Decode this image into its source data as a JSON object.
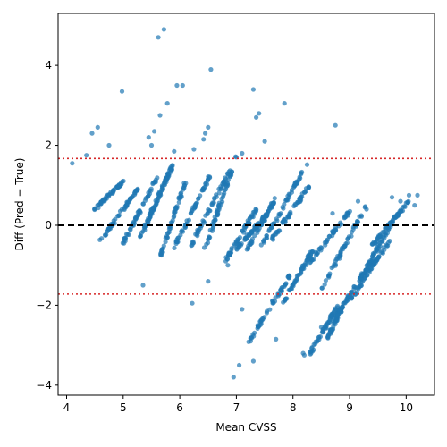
{
  "chart_data": {
    "type": "scatter",
    "title": "",
    "xlabel": "Mean CVSS",
    "ylabel": "Diff (Pred − True)",
    "xlim": [
      3.85,
      10.5
    ],
    "ylim": [
      -4.25,
      5.3
    ],
    "xticks": [
      4,
      5,
      6,
      7,
      8,
      9,
      10
    ],
    "yticks": [
      -4,
      -2,
      0,
      2,
      4
    ],
    "xtick_labels": [
      "4",
      "5",
      "6",
      "7",
      "8",
      "9",
      "10"
    ],
    "ytick_labels": [
      "−4",
      "−2",
      "0",
      "2",
      "4"
    ],
    "grid": false,
    "legend": "none",
    "point_color": "#1f77b4",
    "mean_diff": 0.0,
    "limits_of_agreement": [
      1.67,
      -1.72
    ],
    "mean_line_color": "#000000",
    "loa_line_color": "#d62728",
    "dense_segments": [
      {
        "x": [
          4.5,
          5.0
        ],
        "y": [
          0.4,
          1.1
        ]
      },
      {
        "x": [
          4.6,
          5.25
        ],
        "y": [
          -0.4,
          0.9
        ]
      },
      {
        "x": [
          5.0,
          5.6
        ],
        "y": [
          -0.45,
          1.2
        ]
      },
      {
        "x": [
          5.3,
          5.85
        ],
        "y": [
          -0.3,
          1.4
        ]
      },
      {
        "x": [
          5.4,
          5.9
        ],
        "y": [
          0.0,
          1.6
        ]
      },
      {
        "x": [
          5.65,
          6.1
        ],
        "y": [
          -0.8,
          1.1
        ]
      },
      {
        "x": [
          5.9,
          6.55
        ],
        "y": [
          -0.55,
          1.3
        ]
      },
      {
        "x": [
          6.2,
          6.9
        ],
        "y": [
          -0.5,
          1.4
        ]
      },
      {
        "x": [
          6.45,
          7.0
        ],
        "y": [
          -0.55,
          1.7
        ]
      },
      {
        "x": [
          6.8,
          7.35
        ],
        "y": [
          -0.9,
          0.4
        ]
      },
      {
        "x": [
          7.0,
          7.55
        ],
        "y": [
          -0.6,
          0.3
        ]
      },
      {
        "x": [
          7.2,
          7.7
        ],
        "y": [
          -0.6,
          0.7
        ]
      },
      {
        "x": [
          7.45,
          8.25
        ],
        "y": [
          -0.5,
          1.55
        ]
      },
      {
        "x": [
          7.6,
          8.3
        ],
        "y": [
          -0.4,
          1.0
        ]
      },
      {
        "x": [
          7.2,
          7.95
        ],
        "y": [
          -2.95,
          -1.25
        ]
      },
      {
        "x": [
          7.8,
          8.35
        ],
        "y": [
          -2.0,
          -0.6
        ]
      },
      {
        "x": [
          8.2,
          9.0
        ],
        "y": [
          -1.1,
          0.35
        ]
      },
      {
        "x": [
          8.5,
          9.3
        ],
        "y": [
          -1.6,
          0.5
        ]
      },
      {
        "x": [
          8.3,
          8.8
        ],
        "y": [
          -3.2,
          -2.0
        ]
      },
      {
        "x": [
          8.6,
          9.0
        ],
        "y": [
          -2.85,
          -1.7
        ]
      },
      {
        "x": [
          8.7,
          9.4
        ],
        "y": [
          -2.4,
          -0.9
        ]
      },
      {
        "x": [
          9.0,
          9.7
        ],
        "y": [
          -1.9,
          -0.4
        ]
      },
      {
        "x": [
          9.2,
          9.85
        ],
        "y": [
          -1.3,
          0.3
        ]
      },
      {
        "x": [
          9.4,
          10.05
        ],
        "y": [
          -0.5,
          0.6
        ]
      }
    ],
    "outliers": [
      {
        "x": 4.1,
        "y": 1.55
      },
      {
        "x": 4.35,
        "y": 1.75
      },
      {
        "x": 4.45,
        "y": 2.3
      },
      {
        "x": 4.55,
        "y": 2.45
      },
      {
        "x": 4.75,
        "y": 2.0
      },
      {
        "x": 4.98,
        "y": 3.35
      },
      {
        "x": 5.45,
        "y": 2.2
      },
      {
        "x": 5.5,
        "y": 2.0
      },
      {
        "x": 5.55,
        "y": 2.35
      },
      {
        "x": 5.62,
        "y": 4.7
      },
      {
        "x": 5.72,
        "y": 4.9
      },
      {
        "x": 5.65,
        "y": 2.75
      },
      {
        "x": 5.78,
        "y": 3.05
      },
      {
        "x": 5.9,
        "y": 1.85
      },
      {
        "x": 5.95,
        "y": 3.5
      },
      {
        "x": 6.05,
        "y": 3.5
      },
      {
        "x": 6.25,
        "y": 1.9
      },
      {
        "x": 6.42,
        "y": 2.15
      },
      {
        "x": 6.5,
        "y": 2.45
      },
      {
        "x": 6.55,
        "y": 3.9
      },
      {
        "x": 6.45,
        "y": 2.3
      },
      {
        "x": 7.1,
        "y": 1.8
      },
      {
        "x": 7.3,
        "y": 3.4
      },
      {
        "x": 7.35,
        "y": 2.7
      },
      {
        "x": 7.4,
        "y": 2.8
      },
      {
        "x": 7.5,
        "y": 2.1
      },
      {
        "x": 7.85,
        "y": 3.05
      },
      {
        "x": 8.75,
        "y": 2.5
      },
      {
        "x": 5.35,
        "y": -1.5
      },
      {
        "x": 6.22,
        "y": -1.95
      },
      {
        "x": 6.5,
        "y": -1.4
      },
      {
        "x": 6.85,
        "y": -1.0
      },
      {
        "x": 7.0,
        "y": -0.45
      },
      {
        "x": 7.1,
        "y": -2.1
      },
      {
        "x": 6.95,
        "y": -3.8
      },
      {
        "x": 7.05,
        "y": -3.5
      },
      {
        "x": 7.3,
        "y": -3.4
      },
      {
        "x": 7.7,
        "y": -2.85
      },
      {
        "x": 8.2,
        "y": -3.25
      },
      {
        "x": 8.18,
        "y": -3.2
      },
      {
        "x": 8.5,
        "y": -2.55
      },
      {
        "x": 8.7,
        "y": 0.3
      },
      {
        "x": 8.9,
        "y": -1.95
      },
      {
        "x": 9.15,
        "y": 0.6
      },
      {
        "x": 9.75,
        "y": 0.7
      },
      {
        "x": 9.9,
        "y": 0.6
      },
      {
        "x": 10.05,
        "y": 0.75
      },
      {
        "x": 10.15,
        "y": 0.5
      },
      {
        "x": 10.2,
        "y": 0.75
      },
      {
        "x": 9.3,
        "y": 0.4
      }
    ]
  }
}
